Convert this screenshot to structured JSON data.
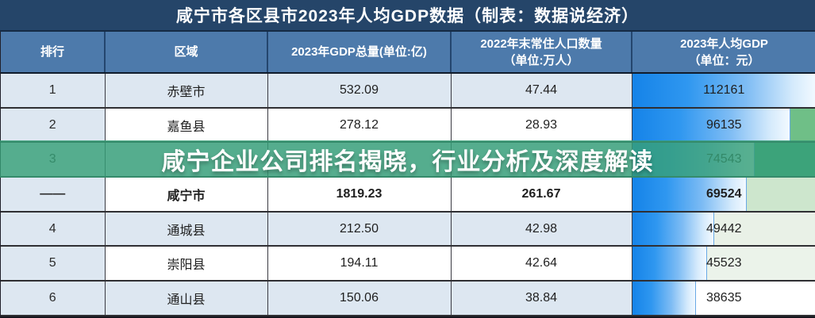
{
  "header": {
    "title": "咸宁市各区县市2023年人均GDP数据（制表：数据说经济）"
  },
  "overlay": {
    "banner_text": "咸宁企业公司排名揭晓，行业分析及深度解读"
  },
  "table": {
    "columns": [
      {
        "label": "排行"
      },
      {
        "label": "区域"
      },
      {
        "label": "2023年GDP总量(单位:亿)"
      },
      {
        "label": "2022年末常住人口数量\n（单位:万人）"
      },
      {
        "label": "2023年人均GDP\n（单位：元）"
      }
    ],
    "rows": [
      {
        "rank": "1",
        "region": "赤壁市",
        "gdp": "532.09",
        "population": "47.44",
        "per_capita_gdp": "112161",
        "bar_pct": 100,
        "bar_rest": "#dde7f1"
      },
      {
        "rank": "2",
        "region": "嘉鱼县",
        "gdp": "278.12",
        "population": "28.93",
        "per_capita_gdp": "96135",
        "bar_pct": 85.7,
        "bar_rest": "#6fbf87"
      },
      {
        "rank": "3",
        "region": "",
        "gdp": "",
        "population": "",
        "per_capita_gdp": "74543",
        "bar_pct": 66.5,
        "bar_rest": "#56b184"
      },
      {
        "rank": "——",
        "region": "咸宁市",
        "gdp": "1819.23",
        "population": "261.67",
        "per_capita_gdp": "69524",
        "bar_pct": 62.0,
        "bar_rest": "#cde6cd"
      },
      {
        "rank": "4",
        "region": "通城县",
        "gdp": "212.50",
        "population": "42.98",
        "per_capita_gdp": "49442",
        "bar_pct": 44.1,
        "bar_rest": "#e9f1e7"
      },
      {
        "rank": "5",
        "region": "崇阳县",
        "gdp": "194.11",
        "population": "42.64",
        "per_capita_gdp": "45523",
        "bar_pct": 40.6,
        "bar_rest": "#ebf3ea"
      },
      {
        "rank": "6",
        "region": "通山县",
        "gdp": "150.06",
        "population": "38.84",
        "per_capita_gdp": "38635",
        "bar_pct": 34.4,
        "bar_rest": "#ffffff"
      }
    ]
  },
  "colors": {
    "title_bar": "#254569",
    "header_row": "#4d7aab",
    "row_light_blue": "#dde7f1",
    "row_white": "#ffffff",
    "bar_blue": "#1583e8",
    "banner_green": "rgba(55,160,120,0.82)"
  },
  "chart_data": {
    "type": "table",
    "title": "咸宁市各区县市2023年人均GDP数据（制表：数据说经济）",
    "columns": [
      "排行",
      "区域",
      "2023年GDP总量(单位:亿)",
      "2022年末常住人口数量（单位:万人）",
      "2023年人均GDP（单位：元）"
    ],
    "rows": [
      {
        "rank": 1,
        "region": "赤壁市",
        "gdp_total_yi": 532.09,
        "population_wan": 47.44,
        "per_capita_gdp_yuan": 112161
      },
      {
        "rank": 2,
        "region": "嘉鱼县",
        "gdp_total_yi": 278.12,
        "population_wan": 28.93,
        "per_capita_gdp_yuan": 96135
      },
      {
        "rank": 3,
        "region": null,
        "gdp_total_yi": null,
        "population_wan": null,
        "per_capita_gdp_yuan": 74543,
        "note": "row partly hidden by overlay banner"
      },
      {
        "rank": "——",
        "region": "咸宁市",
        "gdp_total_yi": 1819.23,
        "population_wan": 261.67,
        "per_capita_gdp_yuan": 69524
      },
      {
        "rank": 4,
        "region": "通城县",
        "gdp_total_yi": 212.5,
        "population_wan": 42.98,
        "per_capita_gdp_yuan": 49442
      },
      {
        "rank": 5,
        "region": "崇阳县",
        "gdp_total_yi": 194.11,
        "population_wan": 42.64,
        "per_capita_gdp_yuan": 45523
      },
      {
        "rank": 6,
        "region": "通山县",
        "gdp_total_yi": 150.06,
        "population_wan": 38.84,
        "per_capita_gdp_yuan": 38635
      }
    ],
    "bar_column": "2023年人均GDP（单位：元）",
    "bar_max": 112161,
    "layout": "data bars (blue gradient) embedded in last column, length proportional to value"
  }
}
